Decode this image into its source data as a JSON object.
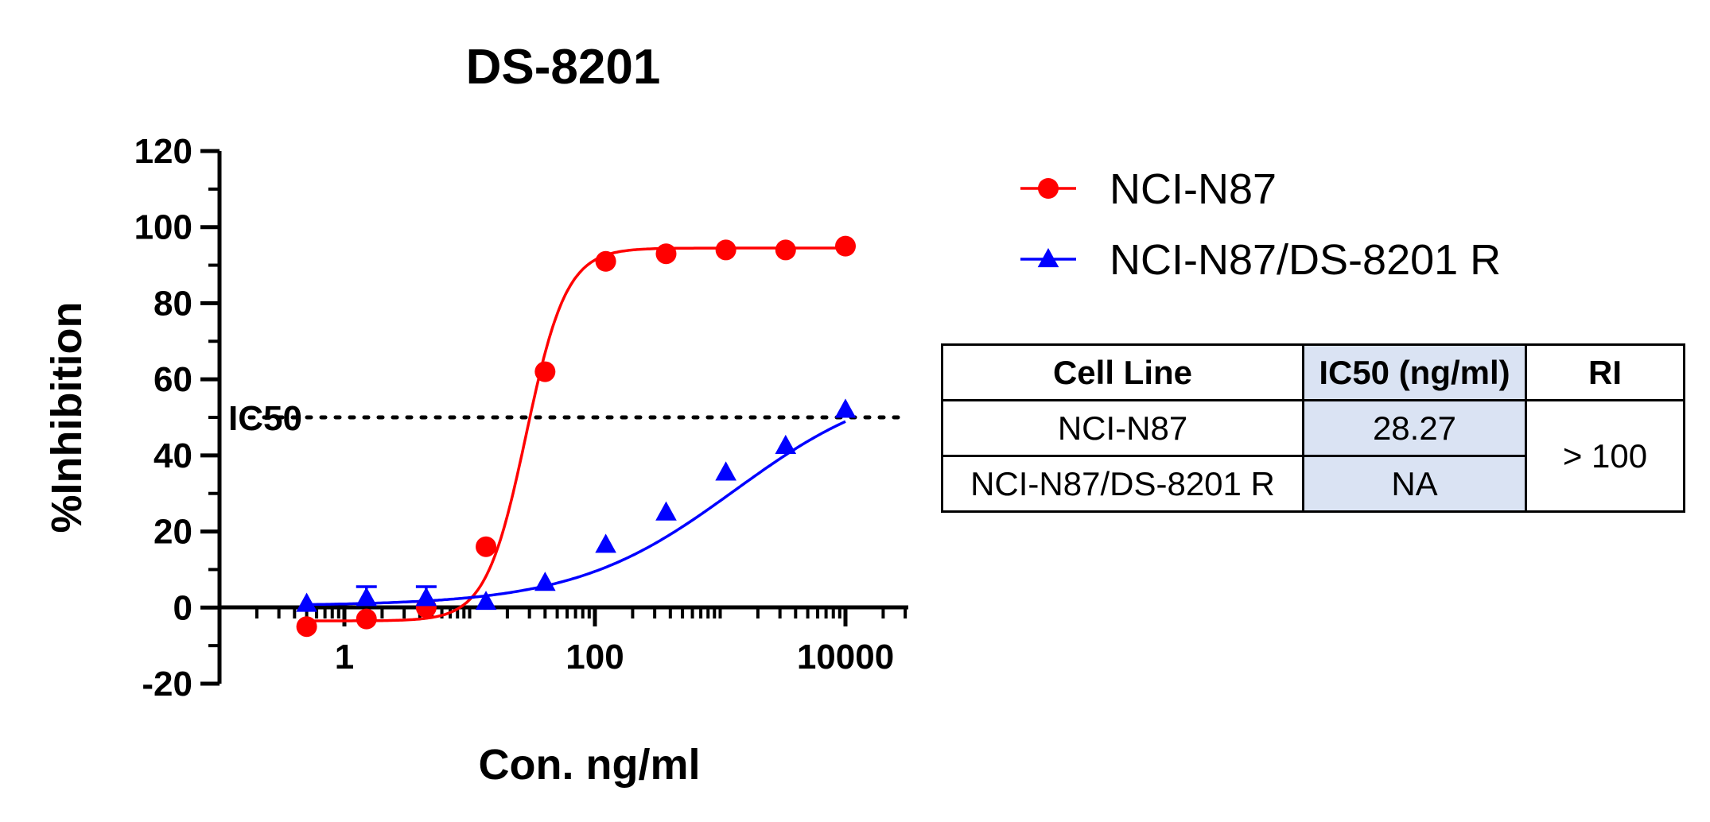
{
  "chart_data": {
    "type": "scatter",
    "title": "DS-8201",
    "xlabel": "Con. ng/ml",
    "ylabel": "%Inhibition",
    "xscale": "log",
    "xlim": [
      0.1,
      35000
    ],
    "ylim": [
      -20,
      120
    ],
    "x_ticks": [
      1,
      100,
      10000
    ],
    "x_tick_labels": [
      "1",
      "100",
      "10000"
    ],
    "y_ticks": [
      -20,
      0,
      20,
      40,
      60,
      80,
      100,
      120
    ],
    "y_tick_labels": [
      "-20",
      "0",
      "20",
      "40",
      "60",
      "80",
      "100",
      "120"
    ],
    "reference_line": {
      "y": 50,
      "label": "IC50",
      "style": "dotted"
    },
    "series": [
      {
        "name": "NCI-N87",
        "color": "#ff0000",
        "marker": "circle",
        "x": [
          0.5,
          1.5,
          4.5,
          13.5,
          40,
          122,
          370,
          1110,
          3330,
          10000
        ],
        "y": [
          -5,
          -3,
          0,
          16,
          62,
          91,
          93,
          94,
          94,
          95
        ],
        "fit": {
          "bottom": -3.5,
          "top": 94.5,
          "ec50": 28.27,
          "hill": 2.7
        }
      },
      {
        "name": "NCI-N87/DS-8201 R",
        "color": "#0000ff",
        "marker": "triangle",
        "x": [
          0.5,
          1.5,
          4.5,
          13.5,
          40,
          122,
          370,
          1110,
          3330,
          10000
        ],
        "y": [
          1,
          2.5,
          2.5,
          1.5,
          6.5,
          16.5,
          25,
          35.5,
          42.5,
          52
        ],
        "y_err": [
          0,
          3,
          3,
          0,
          0,
          0,
          0,
          0,
          0,
          0
        ],
        "fit": {
          "bottom": 0.5,
          "top": 61,
          "ec50": 1300,
          "hill": 0.68
        }
      }
    ],
    "legend_position": "top-right"
  },
  "table": {
    "headers": [
      "Cell Line",
      "IC50 (ng/ml)",
      "RI"
    ],
    "rows": [
      {
        "cell_line": "NCI-N87",
        "ic50": "28.27"
      },
      {
        "cell_line": "NCI-N87/DS-8201 R",
        "ic50": "NA"
      }
    ],
    "ri": "> 100"
  }
}
